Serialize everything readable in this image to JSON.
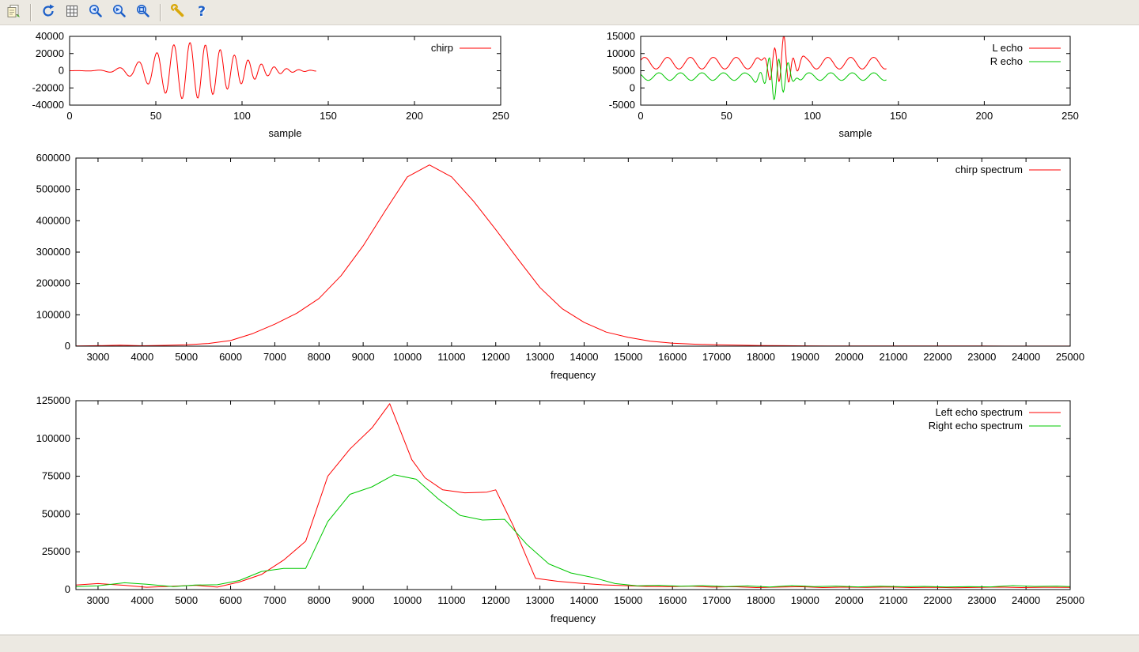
{
  "toolbar": {
    "help_glyph": "?",
    "buttons": [
      {
        "name": "copy-to-clipboard"
      },
      {
        "name": "replot"
      },
      {
        "name": "toggle-grid"
      },
      {
        "name": "zoom-previous"
      },
      {
        "name": "zoom-next"
      },
      {
        "name": "autoscale"
      },
      {
        "name": "configure"
      },
      {
        "name": "help"
      }
    ]
  },
  "status_bar": {
    "text": ""
  },
  "colors": {
    "line_red": "#ff0000",
    "line_green": "#00c800",
    "chrome": "#ece9e2"
  },
  "chart_data": [
    {
      "id": "chirp-time",
      "type": "line",
      "title": "",
      "xlabel": "sample",
      "ylabel": "",
      "xlim": [
        0,
        250
      ],
      "ylim": [
        -40000,
        40000
      ],
      "xticks": [
        0,
        50,
        100,
        150,
        200,
        250
      ],
      "yticks": [
        -40000,
        -20000,
        0,
        20000,
        40000
      ],
      "grid": false,
      "legend_position": "top-right",
      "series": [
        {
          "name": "chirp",
          "color": "#ff0000",
          "synth": {
            "kind": "chirp",
            "t_end": 143,
            "center": 68,
            "sigma_left": 26,
            "sigma_right": 36,
            "amplitude": 33000,
            "f0": 0.07,
            "f1": 0.15
          }
        }
      ]
    },
    {
      "id": "echo-time",
      "type": "line",
      "title": "",
      "xlabel": "sample",
      "ylabel": "",
      "xlim": [
        0,
        250
      ],
      "ylim": [
        -5000,
        15000
      ],
      "xticks": [
        0,
        50,
        100,
        150,
        200,
        250
      ],
      "yticks": [
        -5000,
        0,
        5000,
        10000,
        15000
      ],
      "grid": false,
      "legend_position": "top-right",
      "series": [
        {
          "name": "L echo",
          "color": "#ff0000",
          "synth": {
            "kind": "echo",
            "t_end": 143,
            "baseline": 7200,
            "base_amp": 1700,
            "base_freq": 0.075,
            "phase0": 0.5,
            "burst_amp": 6800,
            "burst_center": 82,
            "burst_sigma": 8,
            "burst_freq": 0.18
          }
        },
        {
          "name": "R echo",
          "color": "#00c800",
          "synth": {
            "kind": "echo",
            "t_end": 143,
            "baseline": 3300,
            "base_amp": 1100,
            "base_freq": 0.08,
            "phase0": 2.5,
            "burst_amp": 6300,
            "burst_center": 79,
            "burst_sigma": 8,
            "burst_freq": 0.18
          }
        }
      ]
    },
    {
      "id": "chirp-spectrum",
      "type": "line",
      "title": "",
      "xlabel": "frequency",
      "ylabel": "",
      "xlim": [
        2500,
        25000
      ],
      "ylim": [
        0,
        600000
      ],
      "xticks": [
        3000,
        4000,
        5000,
        6000,
        7000,
        8000,
        9000,
        10000,
        11000,
        12000,
        13000,
        14000,
        15000,
        16000,
        17000,
        18000,
        19000,
        20000,
        21000,
        22000,
        23000,
        24000,
        25000
      ],
      "yticks": [
        0,
        100000,
        200000,
        300000,
        400000,
        500000,
        600000
      ],
      "grid": false,
      "legend_position": "top-right",
      "series": [
        {
          "name": "chirp spectrum",
          "color": "#ff0000",
          "points": [
            [
              2500,
              500
            ],
            [
              3000,
              1500
            ],
            [
              3500,
              3200
            ],
            [
              4000,
              1200
            ],
            [
              4500,
              2600
            ],
            [
              5000,
              4200
            ],
            [
              5500,
              8500
            ],
            [
              6000,
              18000
            ],
            [
              6500,
              40000
            ],
            [
              7000,
              70000
            ],
            [
              7500,
              105000
            ],
            [
              8000,
              152000
            ],
            [
              8500,
              225000
            ],
            [
              9000,
              320000
            ],
            [
              9500,
              432000
            ],
            [
              10000,
              540000
            ],
            [
              10500,
              578000
            ],
            [
              11000,
              540000
            ],
            [
              11500,
              462000
            ],
            [
              12000,
              372000
            ],
            [
              12500,
              278000
            ],
            [
              13000,
              187000
            ],
            [
              13500,
              120000
            ],
            [
              14000,
              76000
            ],
            [
              14500,
              45000
            ],
            [
              15000,
              28000
            ],
            [
              15500,
              16000
            ],
            [
              16000,
              9500
            ],
            [
              16500,
              6200
            ],
            [
              17000,
              4200
            ],
            [
              17500,
              3000
            ],
            [
              18000,
              2100
            ],
            [
              18500,
              1400
            ],
            [
              19000,
              1000
            ],
            [
              19500,
              800
            ],
            [
              20000,
              650
            ],
            [
              20500,
              550
            ],
            [
              21000,
              500
            ],
            [
              21500,
              450
            ],
            [
              22000,
              420
            ],
            [
              22500,
              400
            ],
            [
              23000,
              380
            ],
            [
              23500,
              360
            ],
            [
              24000,
              350
            ],
            [
              24500,
              340
            ],
            [
              25000,
              330
            ]
          ]
        }
      ]
    },
    {
      "id": "echo-spectra",
      "type": "line",
      "title": "",
      "xlabel": "frequency",
      "ylabel": "",
      "xlim": [
        2500,
        25000
      ],
      "ylim": [
        0,
        125000
      ],
      "xticks": [
        3000,
        4000,
        5000,
        6000,
        7000,
        8000,
        9000,
        10000,
        11000,
        12000,
        13000,
        14000,
        15000,
        16000,
        17000,
        18000,
        19000,
        20000,
        21000,
        22000,
        23000,
        24000,
        25000
      ],
      "yticks": [
        0,
        25000,
        50000,
        75000,
        100000,
        125000
      ],
      "grid": false,
      "legend_position": "top-right",
      "series": [
        {
          "name": "Left echo spectrum",
          "color": "#ff0000",
          "points": [
            [
              2500,
              3000
            ],
            [
              3000,
              4000
            ],
            [
              3600,
              2800
            ],
            [
              4100,
              1500
            ],
            [
              4700,
              2200
            ],
            [
              5200,
              2800
            ],
            [
              5700,
              1600
            ],
            [
              6200,
              5000
            ],
            [
              6700,
              10000
            ],
            [
              7200,
              19500
            ],
            [
              7700,
              32000
            ],
            [
              8200,
              75000
            ],
            [
              8700,
              93000
            ],
            [
              9200,
              107000
            ],
            [
              9600,
              123000
            ],
            [
              10100,
              86000
            ],
            [
              10400,
              74000
            ],
            [
              10800,
              66000
            ],
            [
              11300,
              64000
            ],
            [
              11800,
              64500
            ],
            [
              12000,
              66000
            ],
            [
              12400,
              42000
            ],
            [
              12900,
              7500
            ],
            [
              13400,
              5500
            ],
            [
              13900,
              4200
            ],
            [
              14400,
              3200
            ],
            [
              14900,
              2600
            ],
            [
              15400,
              2100
            ],
            [
              15900,
              1900
            ],
            [
              16400,
              2300
            ],
            [
              16900,
              1600
            ],
            [
              17400,
              1900
            ],
            [
              17900,
              1300
            ],
            [
              18400,
              1600
            ],
            [
              18900,
              1900
            ],
            [
              19400,
              1300
            ],
            [
              19900,
              1600
            ],
            [
              20400,
              1400
            ],
            [
              20900,
              1700
            ],
            [
              21400,
              1300
            ],
            [
              21900,
              1500
            ],
            [
              22400,
              1200
            ],
            [
              22900,
              1400
            ],
            [
              23400,
              1600
            ],
            [
              23900,
              1300
            ],
            [
              24400,
              1500
            ],
            [
              25000,
              1400
            ]
          ]
        },
        {
          "name": "Right echo spectrum",
          "color": "#00c800",
          "points": [
            [
              2500,
              2000
            ],
            [
              3000,
              2500
            ],
            [
              3600,
              4500
            ],
            [
              4100,
              3500
            ],
            [
              4700,
              2000
            ],
            [
              5200,
              3000
            ],
            [
              5700,
              3200
            ],
            [
              6200,
              6000
            ],
            [
              6700,
              12000
            ],
            [
              7200,
              14000
            ],
            [
              7700,
              14000
            ],
            [
              8200,
              45000
            ],
            [
              8700,
              63000
            ],
            [
              9200,
              68000
            ],
            [
              9700,
              76000
            ],
            [
              10200,
              73000
            ],
            [
              10700,
              60000
            ],
            [
              11200,
              49000
            ],
            [
              11700,
              46000
            ],
            [
              12200,
              46500
            ],
            [
              12700,
              30000
            ],
            [
              13200,
              17000
            ],
            [
              13700,
              11000
            ],
            [
              14200,
              8000
            ],
            [
              14700,
              4000
            ],
            [
              15200,
              2500
            ],
            [
              15700,
              2800
            ],
            [
              16200,
              2200
            ],
            [
              16700,
              2600
            ],
            [
              17200,
              2000
            ],
            [
              17700,
              2400
            ],
            [
              18200,
              1700
            ],
            [
              18700,
              2600
            ],
            [
              19200,
              2000
            ],
            [
              19700,
              2300
            ],
            [
              20200,
              1800
            ],
            [
              20700,
              2200
            ],
            [
              21200,
              1900
            ],
            [
              21700,
              2100
            ],
            [
              22200,
              1700
            ],
            [
              22700,
              2000
            ],
            [
              23200,
              1800
            ],
            [
              23700,
              2600
            ],
            [
              24200,
              2100
            ],
            [
              24700,
              2300
            ],
            [
              25000,
              2000
            ]
          ]
        }
      ]
    }
  ]
}
